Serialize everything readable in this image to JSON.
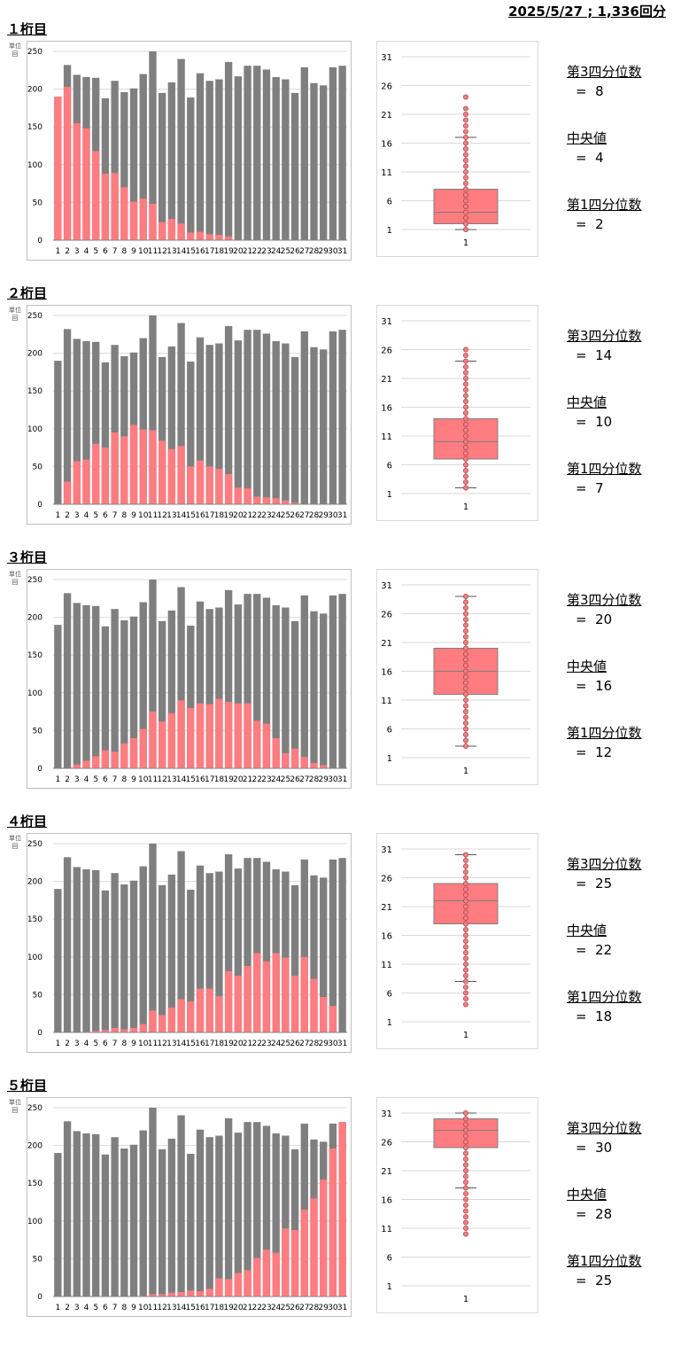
{
  "header": "2025/5/27 ; 1,336回分",
  "unit_label": "単位 回",
  "stat_labels": {
    "q3": "第3四分位数",
    "median": "中央値",
    "q1": "第1四分位数",
    "eq": "="
  },
  "colors": {
    "total_bar": "#7f7f7f",
    "digit_bar": "#ff7c80",
    "box_fill": "#ff7c80",
    "grid": "#d9d9d9"
  },
  "chart_data": [
    {
      "title": "１桁目",
      "type": "bar",
      "categories": [
        "1",
        "2",
        "3",
        "4",
        "5",
        "6",
        "7",
        "8",
        "9",
        "10",
        "11",
        "12",
        "13",
        "14",
        "15",
        "16",
        "17",
        "18",
        "19",
        "20",
        "21",
        "22",
        "23",
        "24",
        "25",
        "26",
        "27",
        "28",
        "29",
        "30",
        "31"
      ],
      "ylim": [
        0,
        250
      ],
      "yticks": [
        0,
        50,
        100,
        150,
        200,
        250
      ],
      "series": [
        {
          "values": [
            190,
            232,
            219,
            216,
            215,
            188,
            211,
            196,
            201,
            220,
            250,
            195,
            209,
            240,
            189,
            221,
            211,
            213,
            236,
            217,
            231,
            231,
            226,
            216,
            213,
            195,
            229,
            208,
            205,
            229,
            231
          ]
        },
        {
          "values": [
            190,
            203,
            155,
            148,
            118,
            88,
            89,
            70,
            51,
            55,
            48,
            24,
            28,
            22,
            10,
            11,
            8,
            7,
            5,
            0,
            0,
            0,
            0,
            0,
            0,
            0,
            0,
            0,
            0,
            0,
            0
          ]
        }
      ],
      "boxplot": {
        "category": "1",
        "yticks": [
          1,
          6,
          11,
          16,
          21,
          26,
          31
        ],
        "ylim": [
          1,
          31
        ],
        "min": 1,
        "q1": 2,
        "median": 4,
        "q3": 8,
        "max": 17,
        "points": [
          1,
          2,
          3,
          4,
          5,
          6,
          7,
          8,
          9,
          10,
          11,
          12,
          13,
          14,
          15,
          16,
          17,
          18,
          19,
          20,
          21,
          22,
          24
        ]
      },
      "stats": {
        "q3": "8",
        "median": "4",
        "q1": "2"
      }
    },
    {
      "title": "２桁目",
      "type": "bar",
      "categories": [
        "1",
        "2",
        "3",
        "4",
        "5",
        "6",
        "7",
        "8",
        "9",
        "10",
        "11",
        "12",
        "13",
        "14",
        "15",
        "16",
        "17",
        "18",
        "19",
        "20",
        "21",
        "22",
        "23",
        "24",
        "25",
        "26",
        "27",
        "28",
        "29",
        "30",
        "31"
      ],
      "ylim": [
        0,
        250
      ],
      "yticks": [
        0,
        50,
        100,
        150,
        200,
        250
      ],
      "series": [
        {
          "values": [
            190,
            232,
            219,
            216,
            215,
            188,
            211,
            196,
            201,
            220,
            250,
            195,
            209,
            240,
            189,
            221,
            211,
            213,
            236,
            217,
            231,
            231,
            226,
            216,
            213,
            195,
            229,
            208,
            205,
            229,
            231
          ]
        },
        {
          "values": [
            0,
            30,
            57,
            59,
            80,
            75,
            95,
            90,
            105,
            99,
            98,
            84,
            73,
            77,
            50,
            58,
            50,
            47,
            40,
            22,
            21,
            10,
            9,
            8,
            5,
            2,
            0,
            0,
            0,
            0,
            0
          ]
        }
      ],
      "boxplot": {
        "category": "1",
        "yticks": [
          1,
          6,
          11,
          16,
          21,
          26,
          31
        ],
        "ylim": [
          1,
          31
        ],
        "min": 2,
        "q1": 7,
        "median": 10,
        "q3": 14,
        "max": 24,
        "points": [
          2,
          3,
          4,
          5,
          6,
          7,
          8,
          9,
          10,
          11,
          12,
          13,
          14,
          15,
          16,
          17,
          18,
          19,
          20,
          21,
          22,
          23,
          24,
          25,
          26
        ]
      },
      "stats": {
        "q3": "14",
        "median": "10",
        "q1": "7"
      }
    },
    {
      "title": "３桁目",
      "type": "bar",
      "categories": [
        "1",
        "2",
        "3",
        "4",
        "5",
        "6",
        "7",
        "8",
        "9",
        "10",
        "11",
        "12",
        "13",
        "14",
        "15",
        "16",
        "17",
        "18",
        "19",
        "20",
        "21",
        "22",
        "23",
        "24",
        "25",
        "26",
        "27",
        "28",
        "29",
        "30",
        "31"
      ],
      "ylim": [
        0,
        250
      ],
      "yticks": [
        0,
        50,
        100,
        150,
        200,
        250
      ],
      "series": [
        {
          "values": [
            190,
            232,
            219,
            216,
            215,
            188,
            211,
            196,
            201,
            220,
            250,
            195,
            209,
            240,
            189,
            221,
            211,
            213,
            236,
            217,
            231,
            231,
            226,
            216,
            213,
            195,
            229,
            208,
            205,
            229,
            231
          ]
        },
        {
          "values": [
            0,
            0,
            5,
            10,
            16,
            24,
            22,
            33,
            40,
            52,
            75,
            62,
            73,
            90,
            80,
            86,
            85,
            92,
            88,
            86,
            86,
            63,
            59,
            40,
            20,
            26,
            15,
            7,
            4,
            0,
            0
          ]
        }
      ],
      "boxplot": {
        "category": "1",
        "yticks": [
          1,
          6,
          11,
          16,
          21,
          26,
          31
        ],
        "ylim": [
          1,
          31
        ],
        "min": 3,
        "q1": 12,
        "median": 16,
        "q3": 20,
        "max": 29,
        "points": [
          3,
          4,
          5,
          6,
          7,
          8,
          9,
          10,
          11,
          12,
          13,
          14,
          15,
          16,
          17,
          18,
          19,
          20,
          21,
          22,
          23,
          24,
          25,
          26,
          27,
          28,
          29
        ]
      },
      "stats": {
        "q3": "20",
        "median": "16",
        "q1": "12"
      }
    },
    {
      "title": "４桁目",
      "type": "bar",
      "categories": [
        "1",
        "2",
        "3",
        "4",
        "5",
        "6",
        "7",
        "8",
        "9",
        "10",
        "11",
        "12",
        "13",
        "14",
        "15",
        "16",
        "17",
        "18",
        "19",
        "20",
        "21",
        "22",
        "23",
        "24",
        "25",
        "26",
        "27",
        "28",
        "29",
        "30",
        "31"
      ],
      "ylim": [
        0,
        250
      ],
      "yticks": [
        0,
        50,
        100,
        150,
        200,
        250
      ],
      "series": [
        {
          "values": [
            190,
            232,
            219,
            216,
            215,
            188,
            211,
            196,
            201,
            220,
            250,
            195,
            209,
            240,
            189,
            221,
            211,
            213,
            236,
            217,
            231,
            231,
            226,
            216,
            213,
            195,
            229,
            208,
            205,
            229,
            231
          ]
        },
        {
          "values": [
            0,
            0,
            0,
            1,
            2,
            3,
            6,
            4,
            6,
            11,
            29,
            23,
            33,
            44,
            41,
            58,
            58,
            48,
            81,
            75,
            88,
            105,
            94,
            105,
            99,
            75,
            100,
            71,
            47,
            35,
            0
          ]
        }
      ],
      "boxplot": {
        "category": "1",
        "yticks": [
          1,
          6,
          11,
          16,
          21,
          26,
          31
        ],
        "ylim": [
          1,
          31
        ],
        "min": 8,
        "q1": 18,
        "median": 22,
        "q3": 25,
        "max": 30,
        "points": [
          4,
          5,
          6,
          7,
          8,
          9,
          10,
          11,
          12,
          13,
          14,
          15,
          16,
          17,
          18,
          19,
          20,
          21,
          22,
          23,
          24,
          25,
          26,
          27,
          28,
          29,
          30
        ]
      },
      "stats": {
        "q3": "25",
        "median": "22",
        "q1": "18"
      }
    },
    {
      "title": "５桁目",
      "type": "bar",
      "categories": [
        "1",
        "2",
        "3",
        "4",
        "5",
        "6",
        "7",
        "8",
        "9",
        "10",
        "11",
        "12",
        "13",
        "14",
        "15",
        "16",
        "17",
        "18",
        "19",
        "20",
        "21",
        "22",
        "23",
        "24",
        "25",
        "26",
        "27",
        "28",
        "29",
        "30",
        "31"
      ],
      "ylim": [
        0,
        250
      ],
      "yticks": [
        0,
        50,
        100,
        150,
        200,
        250
      ],
      "series": [
        {
          "values": [
            190,
            232,
            219,
            216,
            215,
            188,
            211,
            196,
            201,
            220,
            250,
            195,
            209,
            240,
            189,
            221,
            211,
            213,
            236,
            217,
            231,
            231,
            226,
            216,
            213,
            195,
            229,
            208,
            205,
            229,
            231
          ]
        },
        {
          "values": [
            0,
            0,
            0,
            0,
            0,
            0,
            0,
            0,
            0,
            1,
            3,
            3,
            5,
            6,
            8,
            7,
            10,
            24,
            23,
            31,
            35,
            51,
            62,
            58,
            90,
            88,
            115,
            130,
            155,
            196,
            231
          ]
        }
      ],
      "boxplot": {
        "category": "1",
        "yticks": [
          1,
          6,
          11,
          16,
          21,
          26,
          31
        ],
        "ylim": [
          1,
          31
        ],
        "min": 18,
        "q1": 25,
        "median": 28,
        "q3": 30,
        "max": 31,
        "points": [
          10,
          11,
          12,
          13,
          14,
          15,
          16,
          17,
          18,
          19,
          20,
          21,
          22,
          23,
          24,
          25,
          26,
          27,
          28,
          29,
          30,
          31
        ]
      },
      "stats": {
        "q3": "30",
        "median": "28",
        "q1": "25"
      }
    }
  ]
}
